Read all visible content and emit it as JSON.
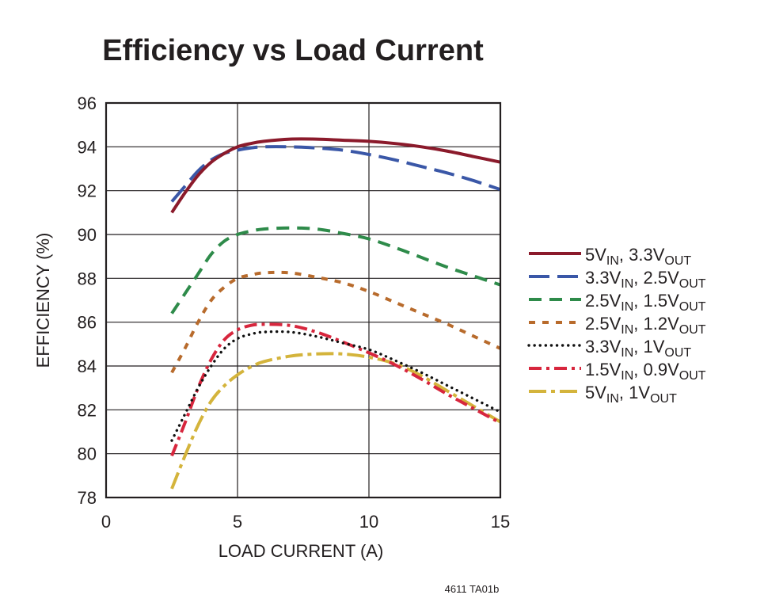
{
  "chart_data": {
    "type": "line",
    "title": "Efficiency vs Load Current",
    "xlabel": "LOAD CURRENT (A)",
    "ylabel": "EFFICIENCY (%)",
    "xlim": [
      0,
      15
    ],
    "ylim": [
      78,
      96
    ],
    "xticks": [
      0,
      5,
      10,
      15
    ],
    "yticks": [
      78,
      80,
      82,
      84,
      86,
      88,
      90,
      92,
      94,
      96
    ],
    "grid": true,
    "legend_position": "right",
    "footnote": "4611 TA01b",
    "series": [
      {
        "name": "5VIN, 3.3VOUT",
        "label_parts": [
          "5V",
          "IN",
          ", 3.3V",
          "OUT"
        ],
        "color": "#8b1a2b",
        "dash": "solid",
        "x": [
          2.5,
          3.0,
          3.5,
          4.0,
          4.5,
          5.0,
          5.5,
          6.0,
          7.0,
          8.0,
          9.0,
          10.0,
          11.0,
          12.0,
          13.0,
          14.0,
          15.0
        ],
        "y": [
          91.0,
          91.9,
          92.7,
          93.3,
          93.7,
          94.0,
          94.15,
          94.25,
          94.35,
          94.35,
          94.3,
          94.25,
          94.15,
          94.0,
          93.8,
          93.55,
          93.3
        ]
      },
      {
        "name": "3.3VIN, 2.5VOUT",
        "label_parts": [
          "3.3V",
          "IN",
          ", 2.5V",
          "OUT"
        ],
        "color": "#3a57a7",
        "dash": "long-dash",
        "x": [
          2.5,
          3.0,
          3.5,
          4.0,
          4.5,
          5.0,
          5.5,
          6.0,
          7.0,
          8.0,
          9.0,
          10.0,
          11.0,
          12.0,
          13.0,
          14.0,
          15.0
        ],
        "y": [
          91.5,
          92.2,
          92.9,
          93.4,
          93.7,
          93.85,
          93.95,
          94.0,
          94.0,
          93.95,
          93.85,
          93.65,
          93.4,
          93.1,
          92.8,
          92.45,
          92.05
        ]
      },
      {
        "name": "2.5VIN, 1.5VOUT",
        "label_parts": [
          "2.5V",
          "IN",
          ", 1.5V",
          "OUT"
        ],
        "color": "#2e8b4a",
        "dash": "dash",
        "x": [
          2.5,
          3.0,
          3.5,
          4.0,
          4.5,
          5.0,
          5.5,
          6.0,
          7.0,
          8.0,
          9.0,
          10.0,
          11.0,
          12.0,
          13.0,
          14.0,
          15.0
        ],
        "y": [
          86.4,
          87.3,
          88.2,
          89.1,
          89.7,
          90.0,
          90.15,
          90.25,
          90.3,
          90.25,
          90.05,
          89.8,
          89.4,
          88.95,
          88.5,
          88.1,
          87.7
        ]
      },
      {
        "name": "2.5VIN, 1.2VOUT",
        "label_parts": [
          "2.5V",
          "IN",
          ", 1.2V",
          "OUT"
        ],
        "color": "#b86b2c",
        "dash": "short-dash",
        "x": [
          2.5,
          3.0,
          3.5,
          4.0,
          4.5,
          5.0,
          5.5,
          6.0,
          7.0,
          8.0,
          9.0,
          10.0,
          11.0,
          12.0,
          13.0,
          14.0,
          15.0
        ],
        "y": [
          83.7,
          84.8,
          86.0,
          87.0,
          87.6,
          88.0,
          88.15,
          88.25,
          88.25,
          88.05,
          87.8,
          87.4,
          86.9,
          86.4,
          85.9,
          85.35,
          84.8
        ]
      },
      {
        "name": "3.3VIN, 1VOUT",
        "label_parts": [
          "3.3V",
          "IN",
          ", 1V",
          "OUT"
        ],
        "color": "#111111",
        "dash": "dotted",
        "x": [
          2.5,
          3.0,
          3.5,
          4.0,
          4.5,
          5.0,
          5.5,
          6.0,
          7.0,
          8.0,
          9.0,
          10.0,
          11.0,
          12.0,
          13.0,
          14.0,
          15.0
        ],
        "y": [
          80.6,
          81.8,
          83.0,
          84.0,
          84.8,
          85.25,
          85.45,
          85.55,
          85.55,
          85.35,
          85.05,
          84.75,
          84.25,
          83.7,
          83.1,
          82.5,
          81.9
        ]
      },
      {
        "name": "1.5VIN, 0.9VOUT",
        "label_parts": [
          "1.5V",
          "IN",
          ", 0.9V",
          "OUT"
        ],
        "color": "#d7263d",
        "dash": "dash-dot",
        "x": [
          2.5,
          3.0,
          3.5,
          4.0,
          4.5,
          5.0,
          5.5,
          6.0,
          7.0,
          8.0,
          9.0,
          10.0,
          11.0,
          12.0,
          13.0,
          14.0,
          15.0
        ],
        "y": [
          79.9,
          81.4,
          83.0,
          84.3,
          85.2,
          85.65,
          85.85,
          85.9,
          85.85,
          85.55,
          85.1,
          84.6,
          84.05,
          83.4,
          82.7,
          82.05,
          81.4
        ]
      },
      {
        "name": "5VIN, 1VOUT",
        "label_parts": [
          "5V",
          "IN",
          ", 1V",
          "OUT"
        ],
        "color": "#d4b43c",
        "dash": "long-dash-dot",
        "x": [
          2.5,
          3.0,
          3.5,
          4.0,
          4.5,
          5.0,
          5.5,
          6.0,
          7.0,
          8.0,
          9.0,
          10.0,
          11.0,
          12.0,
          13.0,
          14.0,
          15.0
        ],
        "y": [
          78.4,
          79.9,
          81.3,
          82.4,
          83.1,
          83.6,
          83.95,
          84.2,
          84.45,
          84.55,
          84.55,
          84.4,
          84.1,
          83.55,
          82.85,
          82.15,
          81.45
        ]
      }
    ]
  }
}
